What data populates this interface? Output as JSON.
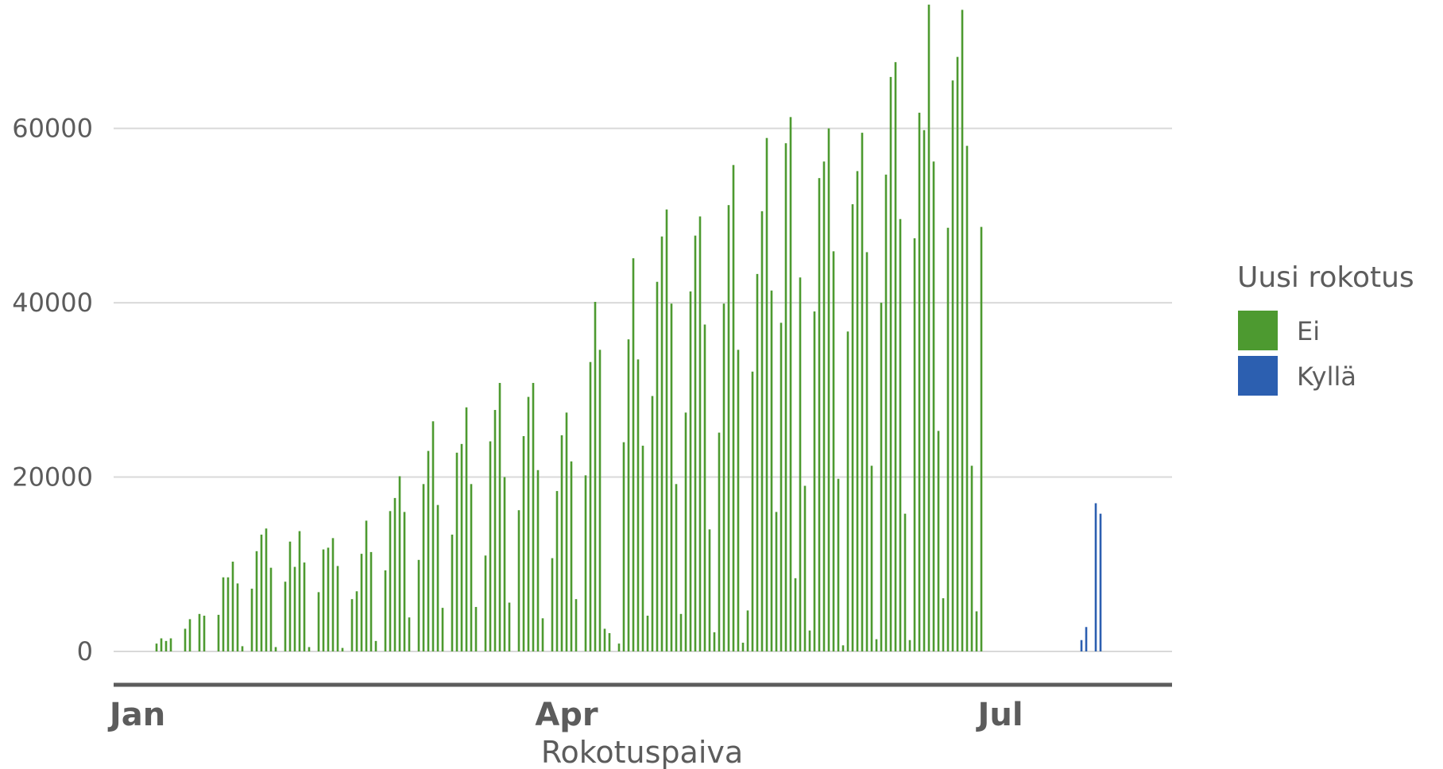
{
  "chart_data": {
    "type": "bar",
    "title": "",
    "xlabel": "Rokotuspaiva",
    "ylabel": "",
    "x_range": [
      "2020-12-27",
      "2021-07-01"
    ],
    "ylim": [
      -3800,
      74000
    ],
    "y_ticks": [
      0,
      20000,
      40000,
      60000
    ],
    "x_ticks": [
      {
        "date": "2021-01-01",
        "label": "Jan"
      },
      {
        "date": "2021-04-01",
        "label": "Apr"
      },
      {
        "date": "2021-07-01",
        "label": "Jul"
      }
    ],
    "grid": "horizontal",
    "legend_position": "right",
    "legend_title": "Uusi rokotus",
    "series": [
      {
        "name": "Ei",
        "color": "#4d9a30",
        "start_date": "2020-12-28",
        "values": [
          0,
          0,
          0,
          0,
          0,
          0,
          0,
          0,
          900,
          1500,
          1200,
          1500,
          0,
          0,
          2600,
          3700,
          0,
          4300,
          4100,
          0,
          0,
          4200,
          8500,
          8500,
          10300,
          7800,
          600,
          0,
          7200,
          11500,
          13400,
          14100,
          9600,
          500,
          0,
          8000,
          12600,
          9700,
          13800,
          10200,
          500,
          0,
          6800,
          11700,
          11900,
          13000,
          9800,
          400,
          0,
          6000,
          6900,
          11200,
          15000,
          11400,
          1200,
          0,
          9300,
          16100,
          17600,
          20100,
          16000,
          3900,
          0,
          10500,
          19200,
          23000,
          26400,
          16800,
          5000,
          0,
          13400,
          22800,
          23800,
          28000,
          19200,
          5100,
          0,
          11000,
          24100,
          27700,
          30800,
          20000,
          5600,
          0,
          16200,
          24700,
          29200,
          30800,
          20800,
          3800,
          0,
          10700,
          18400,
          24800,
          27400,
          21800,
          6000,
          0,
          20200,
          33200,
          40100,
          34600,
          2600,
          2100,
          0,
          900,
          24000,
          35800,
          45100,
          33500,
          23600,
          4100,
          29300,
          42400,
          47600,
          50700,
          39900,
          19200,
          4300,
          27400,
          41300,
          47700,
          49900,
          37500,
          14000,
          2200,
          25100,
          39900,
          51200,
          55800,
          34600,
          1000,
          4700,
          32100,
          43300,
          50500,
          58900,
          41400,
          16000,
          37700,
          58300,
          61300,
          8400,
          42900,
          19000,
          2400,
          39000,
          54300,
          56200,
          60000,
          45900,
          19800,
          700,
          36700,
          51300,
          55100,
          59500,
          45800,
          21300,
          1400,
          40000,
          54700,
          65900,
          67600,
          49600,
          15800,
          1300,
          47400,
          61800,
          59800,
          74200,
          56200,
          25300,
          6100,
          48600,
          65500,
          68200,
          73600,
          58000,
          21300,
          4600,
          48700,
          0
        ]
      },
      {
        "name": "Kyllä",
        "color": "#2c5fb0",
        "start_date": "2020-12-28",
        "values": [
          0,
          0,
          0,
          0,
          0,
          0,
          0,
          0,
          0,
          0,
          0,
          0,
          0,
          0,
          0,
          0,
          0,
          0,
          0,
          0,
          0,
          0,
          0,
          0,
          0,
          0,
          0,
          0,
          0,
          0,
          0,
          0,
          0,
          0,
          0,
          0,
          0,
          0,
          0,
          0,
          0,
          0,
          0,
          0,
          0,
          0,
          0,
          0,
          0,
          0,
          0,
          0,
          0,
          0,
          0,
          0,
          0,
          0,
          0,
          0,
          0,
          0,
          0,
          0,
          0,
          0,
          0,
          0,
          0,
          0,
          0,
          0,
          0,
          0,
          0,
          0,
          0,
          0,
          0,
          0,
          0,
          0,
          0,
          0,
          0,
          0,
          0,
          0,
          0,
          0,
          0,
          0,
          0,
          0,
          0,
          0,
          0,
          0,
          0,
          0,
          0,
          0,
          0,
          0,
          0,
          0,
          0,
          0,
          0,
          0,
          0,
          0,
          0,
          0,
          0,
          0,
          0,
          0,
          0,
          0,
          0,
          0,
          0,
          0,
          0,
          0,
          0,
          0,
          0,
          0,
          0,
          0,
          0,
          0,
          0,
          0,
          0,
          0,
          0,
          0,
          0,
          0,
          0,
          0,
          0,
          0,
          0,
          0,
          0,
          0,
          0,
          0,
          0,
          0,
          0,
          0,
          0,
          0,
          0,
          0,
          0,
          0,
          0,
          0,
          0,
          0,
          0,
          0,
          0,
          0,
          0,
          0,
          0,
          0,
          0,
          0,
          0,
          0,
          0,
          0,
          0,
          0,
          0,
          0,
          0,
          0,
          0,
          0,
          0,
          0,
          0,
          0,
          0,
          0,
          0,
          0,
          0,
          0,
          0,
          0,
          0,
          0,
          1300,
          2800,
          0,
          17000,
          15800
        ]
      }
    ]
  }
}
